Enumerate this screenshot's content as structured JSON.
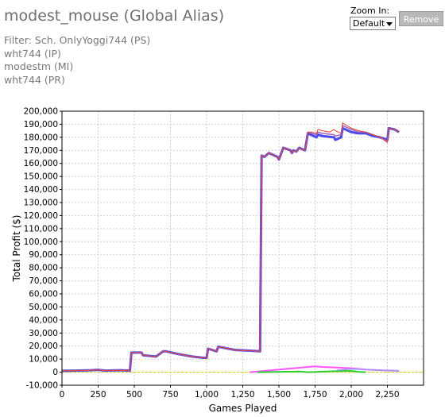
{
  "header": {
    "title": "modest_mouse (Global Alias)",
    "filters": [
      "Filter: Sch. OnlyYoggi744 (PS)",
      "wht744 (IP)",
      "modestm (MI)",
      "wht744 (PR)"
    ]
  },
  "controls": {
    "zoom_label": "Zoom In:",
    "zoom_value": "Default",
    "remove_label": "Remove"
  },
  "chart_data": {
    "type": "line",
    "xlabel": "Games Played",
    "ylabel": "Total Profit ($)",
    "xlim": [
      0,
      2500
    ],
    "ylim": [
      -10000,
      200000
    ],
    "x_ticks": [
      "0",
      "250",
      "500",
      "750",
      "1,000",
      "1,250",
      "1,500",
      "1,750",
      "2,000",
      "2,250"
    ],
    "x_tick_values": [
      0,
      250,
      500,
      750,
      1000,
      1250,
      1500,
      1750,
      2000,
      2250
    ],
    "y_ticks": [
      "-10,000",
      "0",
      "10,000",
      "20,000",
      "30,000",
      "40,000",
      "50,000",
      "60,000",
      "70,000",
      "80,000",
      "90,000",
      "100,000",
      "110,000",
      "120,000",
      "130,000",
      "140,000",
      "150,000",
      "160,000",
      "170,000",
      "180,000",
      "190,000",
      "200,000"
    ],
    "y_tick_values": [
      -10000,
      0,
      10000,
      20000,
      30000,
      40000,
      50000,
      60000,
      70000,
      80000,
      90000,
      100000,
      110000,
      120000,
      130000,
      140000,
      150000,
      160000,
      170000,
      180000,
      190000,
      200000
    ],
    "grid": true,
    "zero_line_color": "#d4d400",
    "series": [
      {
        "color": "#4a4aee",
        "width": 3,
        "x": [
          0,
          100,
          200,
          250,
          300,
          400,
          470,
          480,
          550,
          560,
          650,
          700,
          720,
          800,
          900,
          980,
          1000,
          1010,
          1070,
          1080,
          1150,
          1200,
          1300,
          1370,
          1380,
          1400,
          1430,
          1490,
          1500,
          1530,
          1580,
          1590,
          1600,
          1620,
          1640,
          1680,
          1700,
          1760,
          1770,
          1800,
          1880,
          1890,
          1930,
          1940,
          2000,
          2050,
          2100,
          2150,
          2200,
          2250,
          2260,
          2300,
          2330
        ],
        "y": [
          1000,
          1200,
          1500,
          1800,
          1200,
          1500,
          1200,
          15000,
          15000,
          13000,
          12000,
          16000,
          16000,
          14000,
          12000,
          11000,
          11000,
          18000,
          16000,
          19500,
          18000,
          17000,
          16500,
          16000,
          166000,
          165000,
          168000,
          165000,
          163000,
          172000,
          170000,
          168000,
          170000,
          169000,
          172000,
          170000,
          183000,
          180000,
          182000,
          181000,
          180000,
          178000,
          180000,
          187000,
          184000,
          183000,
          183000,
          181000,
          180000,
          178000,
          187000,
          186000,
          184000
        ]
      },
      {
        "color": "#a060c0",
        "width": 1.5,
        "x": [
          0,
          100,
          200,
          250,
          300,
          400,
          470,
          480,
          550,
          560,
          650,
          700,
          720,
          800,
          900,
          980,
          1000,
          1010,
          1070,
          1080,
          1150,
          1200,
          1300,
          1370,
          1380,
          1400,
          1430,
          1490,
          1500,
          1530,
          1580,
          1590,
          1600,
          1620,
          1640,
          1680,
          1700,
          1760,
          1770,
          1800,
          1880,
          1890,
          1930,
          1940,
          2000,
          2050,
          2100,
          2150,
          2200,
          2250,
          2260,
          2300,
          2330
        ],
        "y": [
          1000,
          1200,
          1500,
          1800,
          1200,
          1500,
          1200,
          15000,
          15000,
          13000,
          12000,
          16000,
          16000,
          14000,
          12000,
          11000,
          11000,
          18000,
          16000,
          19500,
          18000,
          17000,
          16500,
          16000,
          166000,
          165000,
          168000,
          165000,
          163000,
          172000,
          170000,
          168000,
          170000,
          169000,
          172000,
          170000,
          184000,
          182000,
          184000,
          183000,
          182000,
          181000,
          182000,
          189000,
          186000,
          184000,
          184000,
          182000,
          180000,
          177000,
          187000,
          186000,
          184000
        ]
      },
      {
        "color": "#dd4433",
        "width": 1,
        "x": [
          0,
          100,
          200,
          250,
          300,
          400,
          470,
          480,
          550,
          560,
          650,
          700,
          720,
          800,
          900,
          980,
          1000,
          1010,
          1070,
          1080,
          1150,
          1200,
          1300,
          1370,
          1380,
          1400,
          1430,
          1490,
          1500,
          1530,
          1580,
          1590,
          1600,
          1620,
          1640,
          1680,
          1700,
          1730,
          1760,
          1770,
          1800,
          1850,
          1880,
          1890,
          1930,
          1940,
          2000,
          2050,
          2100,
          2150,
          2200,
          2250,
          2260,
          2300,
          2330
        ],
        "y": [
          1000,
          1200,
          1500,
          1800,
          1200,
          1500,
          1200,
          15000,
          15000,
          13000,
          12000,
          16000,
          16000,
          14000,
          12000,
          11000,
          11000,
          18000,
          16000,
          19500,
          18000,
          17000,
          16500,
          16000,
          166000,
          165000,
          168000,
          165000,
          163000,
          172000,
          170000,
          168000,
          170000,
          169000,
          172000,
          170000,
          184000,
          184000,
          183000,
          186000,
          185000,
          184000,
          186000,
          185000,
          183000,
          191000,
          187000,
          185000,
          184000,
          182000,
          180000,
          176000,
          187000,
          186000,
          184000
        ]
      },
      {
        "color": "#ff55ff",
        "width": 2,
        "x": [
          1300,
          1450,
          1600,
          1750,
          1800,
          1900,
          2000,
          2100,
          2200,
          2330
        ],
        "y": [
          0,
          1500,
          3000,
          4500,
          4000,
          3500,
          3000,
          2000,
          1500,
          1000
        ]
      },
      {
        "color": "#33cc33",
        "width": 2,
        "x": [
          1350,
          1500,
          1650,
          1700,
          1800,
          1900,
          2000,
          2050,
          2100
        ],
        "y": [
          0,
          300,
          500,
          0,
          400,
          800,
          1000,
          300,
          0
        ]
      },
      {
        "color": "#9999ff",
        "width": 1.5,
        "x": [
          1900,
          2000,
          2100,
          2200,
          2330
        ],
        "y": [
          1500,
          2500,
          2000,
          1500,
          1000
        ]
      }
    ]
  }
}
